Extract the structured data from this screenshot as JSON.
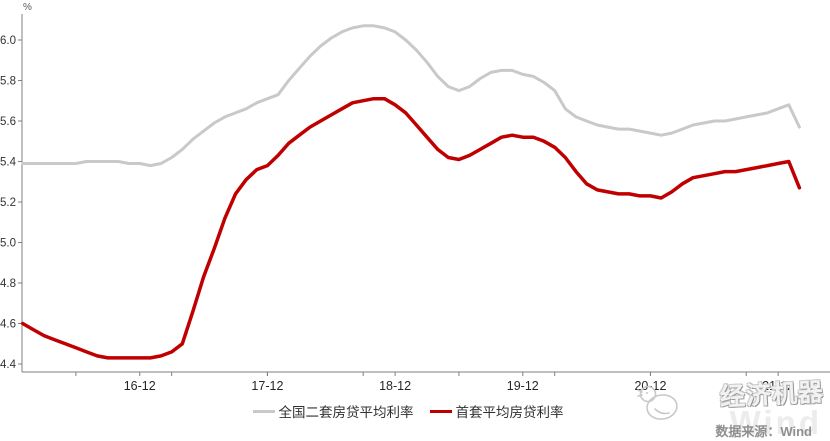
{
  "chart_data": {
    "type": "line",
    "title": "",
    "unit_label": "%",
    "xlabel": "",
    "ylabel": "%",
    "x_start_month": "2016-01",
    "x_end_month": "2022-02",
    "x_tick_labels": [
      "16-12",
      "17-12",
      "18-12",
      "19-12",
      "20-12",
      "21-12"
    ],
    "y_ticks": [
      4.4,
      4.6,
      4.8,
      5.0,
      5.2,
      5.4,
      5.6,
      5.8,
      6.0
    ],
    "ylim": [
      4.36,
      6.13
    ],
    "grid": false,
    "legend_position": "bottom-center",
    "series": [
      {
        "name": "全国二套房贷平均利率",
        "color": "#c9c9c9",
        "values": [
          5.39,
          5.39,
          5.39,
          5.39,
          5.39,
          5.39,
          5.4,
          5.4,
          5.4,
          5.4,
          5.39,
          5.39,
          5.38,
          5.39,
          5.42,
          5.46,
          5.51,
          5.55,
          5.59,
          5.62,
          5.64,
          5.66,
          5.69,
          5.71,
          5.73,
          5.8,
          5.86,
          5.92,
          5.97,
          6.01,
          6.04,
          6.06,
          6.07,
          6.07,
          6.06,
          6.04,
          6.0,
          5.95,
          5.89,
          5.82,
          5.77,
          5.75,
          5.77,
          5.81,
          5.84,
          5.85,
          5.85,
          5.83,
          5.82,
          5.79,
          5.75,
          5.66,
          5.62,
          5.6,
          5.58,
          5.57,
          5.56,
          5.56,
          5.55,
          5.54,
          5.53,
          5.54,
          5.56,
          5.58,
          5.59,
          5.6,
          5.6,
          5.61,
          5.62,
          5.63,
          5.64,
          5.66,
          5.68,
          5.57
        ]
      },
      {
        "name": "首套平均房贷利率",
        "color": "#c00000",
        "values": [
          4.6,
          4.57,
          4.54,
          4.52,
          4.5,
          4.48,
          4.46,
          4.44,
          4.43,
          4.43,
          4.43,
          4.43,
          4.43,
          4.44,
          4.46,
          4.5,
          4.66,
          4.83,
          4.97,
          5.12,
          5.24,
          5.31,
          5.36,
          5.38,
          5.43,
          5.49,
          5.53,
          5.57,
          5.6,
          5.63,
          5.66,
          5.69,
          5.7,
          5.71,
          5.71,
          5.68,
          5.64,
          5.58,
          5.52,
          5.46,
          5.42,
          5.41,
          5.43,
          5.46,
          5.49,
          5.52,
          5.53,
          5.52,
          5.52,
          5.5,
          5.47,
          5.42,
          5.35,
          5.29,
          5.26,
          5.25,
          5.24,
          5.24,
          5.23,
          5.23,
          5.22,
          5.25,
          5.29,
          5.32,
          5.33,
          5.34,
          5.35,
          5.35,
          5.36,
          5.37,
          5.38,
          5.39,
          5.4,
          5.27
        ]
      }
    ]
  },
  "legend": {
    "items": [
      {
        "label": "全国二套房贷平均利率",
        "color": "#c9c9c9"
      },
      {
        "label": "首套平均房贷利率",
        "color": "#c00000"
      }
    ]
  },
  "watermark": {
    "brand": "经济机器",
    "ghost": "Wind",
    "source": "数据来源：Wind"
  }
}
